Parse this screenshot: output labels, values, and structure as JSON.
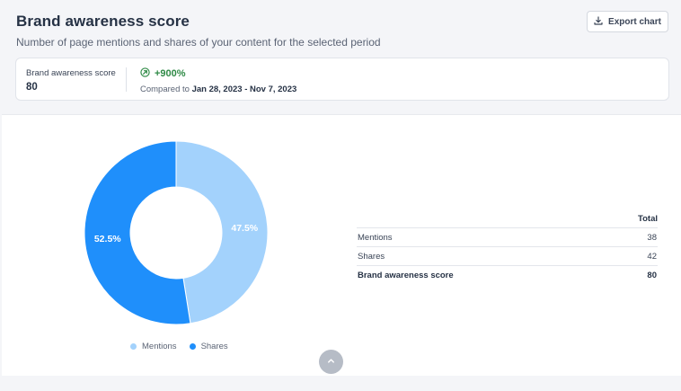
{
  "header": {
    "title": "Brand awareness score",
    "subtitle": "Number of page mentions and shares of your content for the selected period",
    "export_label": "Export chart"
  },
  "score_card": {
    "label": "Brand awareness score",
    "value": "80",
    "change": "+900%",
    "compare_prefix": "Compared to",
    "compare_range": "Jan 28, 2023 - Nov 7, 2023",
    "change_color": "#2f8a46"
  },
  "chart_data": {
    "type": "pie",
    "donut": true,
    "categories": [
      "Mentions",
      "Shares"
    ],
    "values": [
      38,
      42
    ],
    "labels": [
      "47.5%",
      "52.5%"
    ],
    "colors": [
      "#a3d2fc",
      "#1f8ffb"
    ],
    "legend_position": "bottom"
  },
  "table": {
    "header_total": "Total",
    "rows": [
      {
        "label": "Mentions",
        "value": "38"
      },
      {
        "label": "Shares",
        "value": "42"
      }
    ],
    "total_row": {
      "label": "Brand awareness score",
      "value": "80"
    }
  },
  "icons": {
    "export": "download-icon",
    "change": "arrow-up-circle-icon",
    "scroll": "chevron-up-icon"
  }
}
